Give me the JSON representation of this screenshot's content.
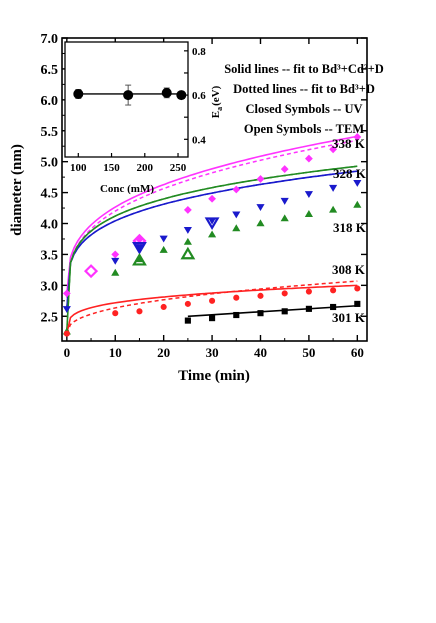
{
  "chart_data": [
    {
      "type": "line",
      "xlabel": "Time (min)",
      "ylabel": "diameter (nm)",
      "xlim": [
        -1,
        62
      ],
      "ylim": [
        2.1,
        7.0
      ],
      "xticks": [
        0,
        10,
        20,
        30,
        40,
        50,
        60
      ],
      "yticks": [
        2.5,
        3.0,
        3.5,
        4.0,
        4.5,
        5.0,
        5.5,
        6.0,
        6.5,
        7.0
      ],
      "ytick_labels": [
        "2.5",
        "3.0",
        "3.5",
        "4.0",
        "4.5",
        "5.0",
        "5.5",
        "6.0",
        "6.5",
        "7.0"
      ],
      "legend_lines": [
        "Solid lines -- fit to Bd³+Cd²+D",
        "Dotted lines -- fit to Bd³+D",
        "Closed Symbols -- UV",
        "Open Symbols -- TEM"
      ],
      "series": [
        {
          "name": "338 K",
          "color": "#ff33ff",
          "marker": "diamond",
          "x": [
            0,
            10,
            15,
            25,
            30,
            35,
            40,
            45,
            50,
            55,
            60
          ],
          "y": [
            2.87,
            3.5,
            3.74,
            4.22,
            4.4,
            4.55,
            4.72,
            4.88,
            5.05,
            5.2,
            5.4
          ],
          "tem": {
            "marker": "diamond-open",
            "x": [
              5,
              15
            ],
            "y": [
              3.23,
              3.72
            ]
          },
          "fit_solid": {
            "B": 0.65,
            "C": 2.865,
            "D": 0.3333
          },
          "fit_dotted": {
            "B": 0.65,
            "C": 2.8,
            "D": 0.3333
          }
        },
        {
          "name": "328 K",
          "color": "#1a1acc",
          "marker": "triangle-down",
          "x": [
            0,
            10,
            15,
            20,
            25,
            30,
            35,
            40,
            45,
            50,
            55,
            60
          ],
          "y": [
            2.62,
            3.4,
            3.62,
            3.76,
            3.9,
            4.05,
            4.15,
            4.27,
            4.37,
            4.48,
            4.58,
            4.66
          ],
          "tem": {
            "marker": "triangle-down-open",
            "x": [
              15,
              30
            ],
            "y": [
              3.62,
              4.02
            ]
          },
          "fit_solid": {
            "B": 0.8,
            "C": 2.62,
            "D": 0.25
          },
          "fit_dotted": {
            "B": 0.8,
            "C": 2.62,
            "D": 0.25
          }
        },
        {
          "name": "318 K",
          "color": "#228b22",
          "marker": "triangle-up",
          "x": [
            0,
            10,
            15,
            20,
            25,
            30,
            35,
            40,
            45,
            50,
            55,
            60
          ],
          "y": [
            2.25,
            3.2,
            3.42,
            3.57,
            3.7,
            3.82,
            3.92,
            4.0,
            4.08,
            4.15,
            4.22,
            4.3
          ],
          "tem": {
            "marker": "triangle-up-open",
            "x": [
              15,
              25
            ],
            "y": [
              3.4,
              3.5
            ]
          },
          "fit_solid": {
            "B": 1.18,
            "C": 2.25,
            "D": 0.2
          },
          "fit_dotted": {
            "B": 1.18,
            "C": 2.25,
            "D": 0.2
          }
        },
        {
          "name": "308 K",
          "color": "#ff2222",
          "marker": "circle",
          "x": [
            0,
            10,
            15,
            20,
            25,
            30,
            35,
            40,
            45,
            50,
            55,
            60
          ],
          "y": [
            2.22,
            2.55,
            2.58,
            2.65,
            2.7,
            2.75,
            2.8,
            2.83,
            2.87,
            2.9,
            2.92,
            2.95
          ],
          "fit_solid": {
            "B": 0.28,
            "C": 2.22,
            "D": 0.25
          },
          "fit_dotted": {
            "B": 0.165,
            "C": 2.22,
            "D": 0.4
          }
        },
        {
          "name": "301 K",
          "color": "#000000",
          "marker": "square",
          "x": [
            25,
            30,
            35,
            40,
            45,
            50,
            55,
            60
          ],
          "y": [
            2.43,
            2.47,
            2.52,
            2.55,
            2.58,
            2.62,
            2.65,
            2.7
          ],
          "fit_solid": {
            "x0": 25,
            "x1": 60,
            "y0": 2.5,
            "y1": 2.67
          }
        }
      ]
    },
    {
      "type": "scatter",
      "xlabel": "Conc (mM)",
      "ylabel_main": "E",
      "ylabel_sub": "a",
      "ylabel_unit": "(eV)",
      "xlim": [
        80,
        265
      ],
      "ylim": [
        0.32,
        0.84
      ],
      "xticks": [
        100,
        150,
        200,
        250
      ],
      "yticks": [
        0.4,
        0.5,
        0.6,
        0.7,
        0.8
      ],
      "ytick_labels": [
        "0.4",
        "",
        "0.6",
        "",
        "0.8"
      ],
      "points": [
        {
          "x": 100,
          "y": 0.605,
          "err": 0.02
        },
        {
          "x": 175,
          "y": 0.6,
          "err": 0.045
        },
        {
          "x": 233,
          "y": 0.61,
          "err": 0.022
        },
        {
          "x": 255,
          "y": 0.6,
          "err": 0.012
        }
      ],
      "fit_line": {
        "x0": 95,
        "x1": 260,
        "y": 0.605
      }
    }
  ]
}
